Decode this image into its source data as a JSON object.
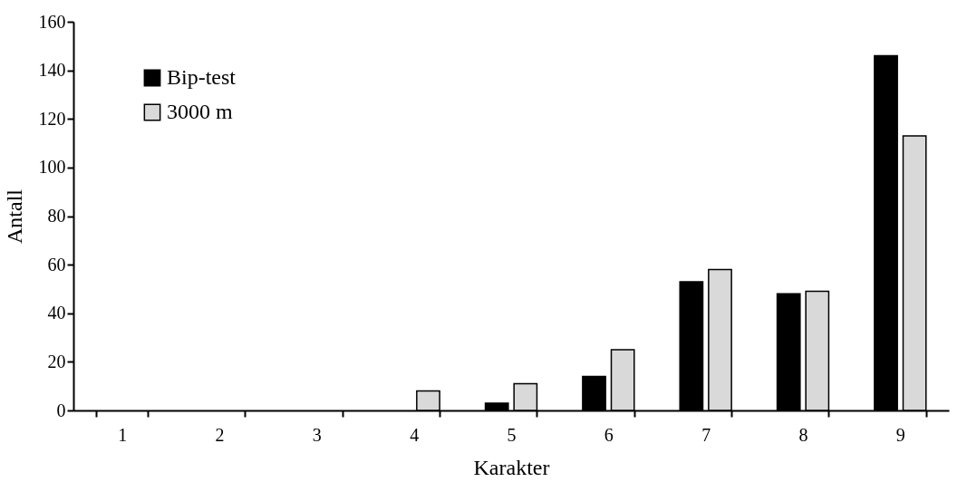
{
  "chart_data": {
    "type": "bar",
    "xlabel": "Karakter",
    "ylabel": "Antall",
    "categories": [
      "1",
      "2",
      "3",
      "4",
      "5",
      "6",
      "7",
      "8",
      "9"
    ],
    "series": [
      {
        "name": "Bip-test",
        "color": "#000000",
        "values": [
          0,
          0,
          0,
          0,
          3,
          14,
          53,
          48,
          146
        ]
      },
      {
        "name": "3000 m",
        "color": "#d9d9d9",
        "values": [
          0,
          0,
          0,
          8,
          11,
          25,
          58,
          49,
          113
        ]
      }
    ],
    "ylim": [
      0,
      160
    ],
    "yticks": [
      0,
      20,
      40,
      60,
      80,
      100,
      120,
      140,
      160
    ],
    "grid": false,
    "legend": "top left"
  }
}
